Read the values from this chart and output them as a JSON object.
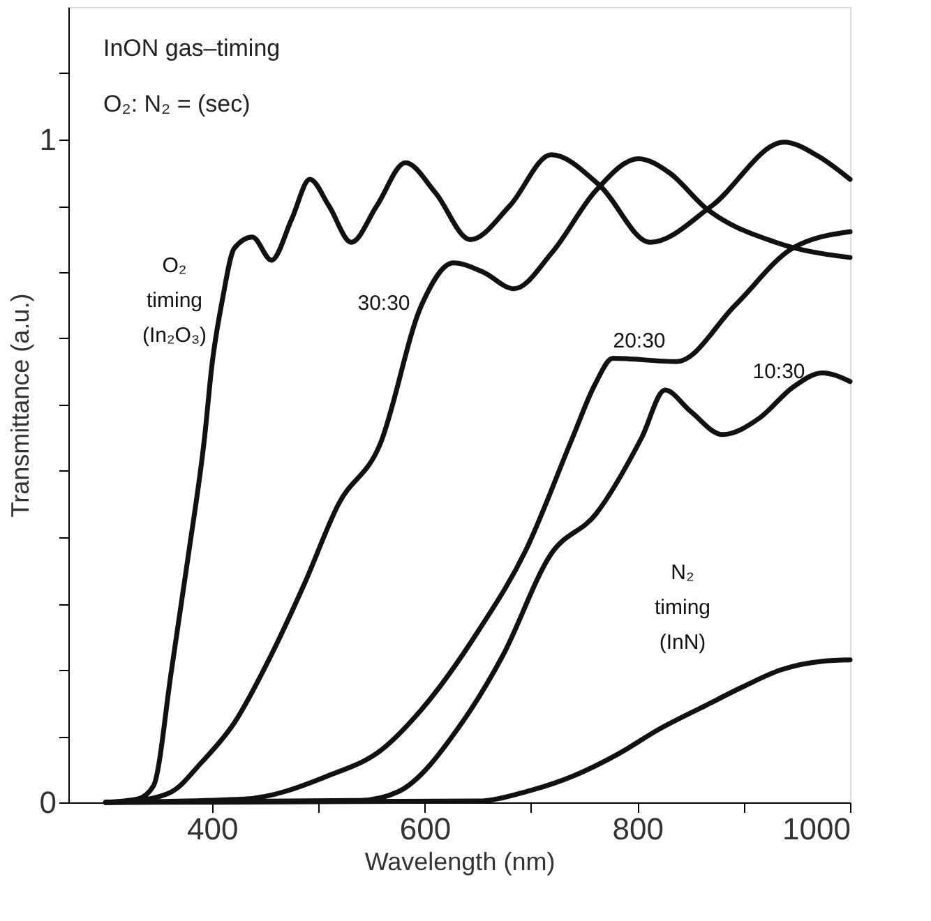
{
  "chart_data": {
    "type": "line",
    "xlabel": "Wavelength (nm)",
    "ylabel": "Transmittance (a.u.)",
    "xlim": [
      265,
      1000
    ],
    "ylim": [
      0,
      1.2
    ],
    "xticks": [
      400,
      {
        "value": 500,
        "label": null
      },
      600,
      {
        "value": 700,
        "label": null
      },
      800,
      {
        "value": 900,
        "label": null
      },
      1000
    ],
    "yticks": [
      0,
      {
        "value": 0.1,
        "label": null
      },
      {
        "value": 0.2,
        "label": null
      },
      {
        "value": 0.3,
        "label": null
      },
      {
        "value": 0.4,
        "label": null
      },
      {
        "value": 0.5,
        "label": null
      },
      {
        "value": 0.6,
        "label": null
      },
      {
        "value": 0.7,
        "label": null
      },
      {
        "value": 0.8,
        "label": null
      },
      {
        "value": 0.9,
        "label": null
      },
      1,
      {
        "value": 1.1,
        "label": null
      }
    ],
    "grid": false,
    "marker": "none",
    "line_style": "solid",
    "series": [
      {
        "name": "O₂ timing (In₂O₃)",
        "color": "#111111",
        "x": [
          300,
          330,
          345,
          362,
          378,
          393,
          400,
          410,
          421,
          438,
          456,
          475,
          492,
          510,
          531,
          555,
          582,
          610,
          643,
          680,
          719,
          765,
          812,
          870,
          938,
          970,
          1000
        ],
        "values": [
          0,
          0.005,
          0.025,
          0.2,
          0.375,
          0.55,
          0.66,
          0.76,
          0.836,
          0.853,
          0.818,
          0.88,
          0.94,
          0.9,
          0.845,
          0.9,
          0.965,
          0.92,
          0.849,
          0.9,
          0.977,
          0.93,
          0.845,
          0.9,
          0.996,
          0.975,
          0.94
        ]
      },
      {
        "name": "30:30",
        "color": "#111111",
        "x": [
          300,
          330,
          362,
          390,
          421,
          455,
          487,
          519,
          558,
          597,
          627,
          655,
          684,
          720,
          761,
          801,
          830,
          864,
          930,
          1000
        ],
        "values": [
          0,
          0.003,
          0.016,
          0.06,
          0.12,
          0.22,
          0.33,
          0.45,
          0.54,
          0.75,
          0.814,
          0.8,
          0.775,
          0.83,
          0.923,
          0.971,
          0.95,
          0.897,
          0.845,
          0.822
        ]
      },
      {
        "name": "20:30",
        "color": "#111111",
        "x": [
          300,
          430,
          509,
          560,
          597,
          651,
          695,
          739,
          760,
          777,
          837,
          892,
          946,
          1000
        ],
        "values": [
          0,
          0.005,
          0.04,
          0.08,
          0.14,
          0.26,
          0.38,
          0.55,
          0.63,
          0.67,
          0.665,
          0.75,
          0.836,
          0.861
        ]
      },
      {
        "name": "10:30",
        "color": "#111111",
        "x": [
          300,
          540,
          575,
          635,
          673,
          719,
          761,
          804,
          826,
          850,
          880,
          915,
          946,
          974,
          1000
        ],
        "values": [
          0,
          0.003,
          0.016,
          0.12,
          0.22,
          0.375,
          0.435,
          0.55,
          0.622,
          0.59,
          0.555,
          0.58,
          0.626,
          0.648,
          0.635
        ]
      },
      {
        "name": "N₂ timing (InN)",
        "color": "#111111",
        "x": [
          300,
          650,
          695,
          740,
          782,
          820,
          864,
          900,
          935,
          974,
          1000
        ],
        "values": [
          0,
          0.002,
          0.016,
          0.04,
          0.073,
          0.11,
          0.146,
          0.175,
          0.2,
          0.213,
          0.215
        ]
      }
    ],
    "annotations": [
      "InON gas–timing",
      "O₂: N₂ =    (sec)"
    ]
  }
}
